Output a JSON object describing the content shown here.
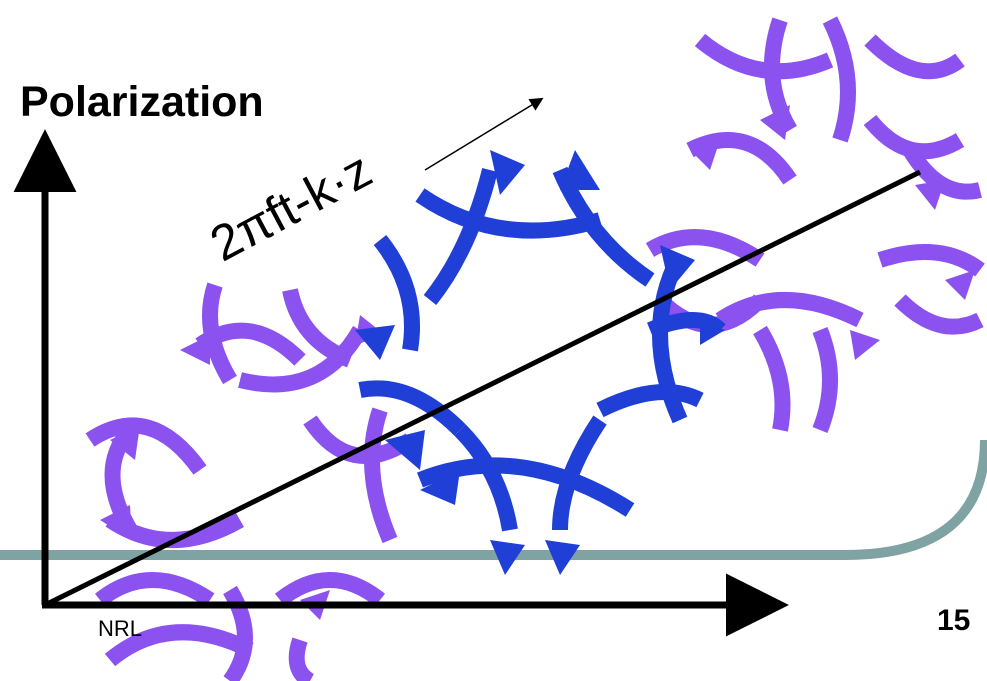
{
  "slide": {
    "title": "Polarization",
    "phase_label": "2πft-k·z",
    "footer_text": "NRL",
    "page_number": "15"
  },
  "colors": {
    "violet_arcs": "#8b52f0",
    "blue_arcs": "#1f3fd6",
    "slide_band": "#7fa3a3",
    "axes": "#000000"
  }
}
